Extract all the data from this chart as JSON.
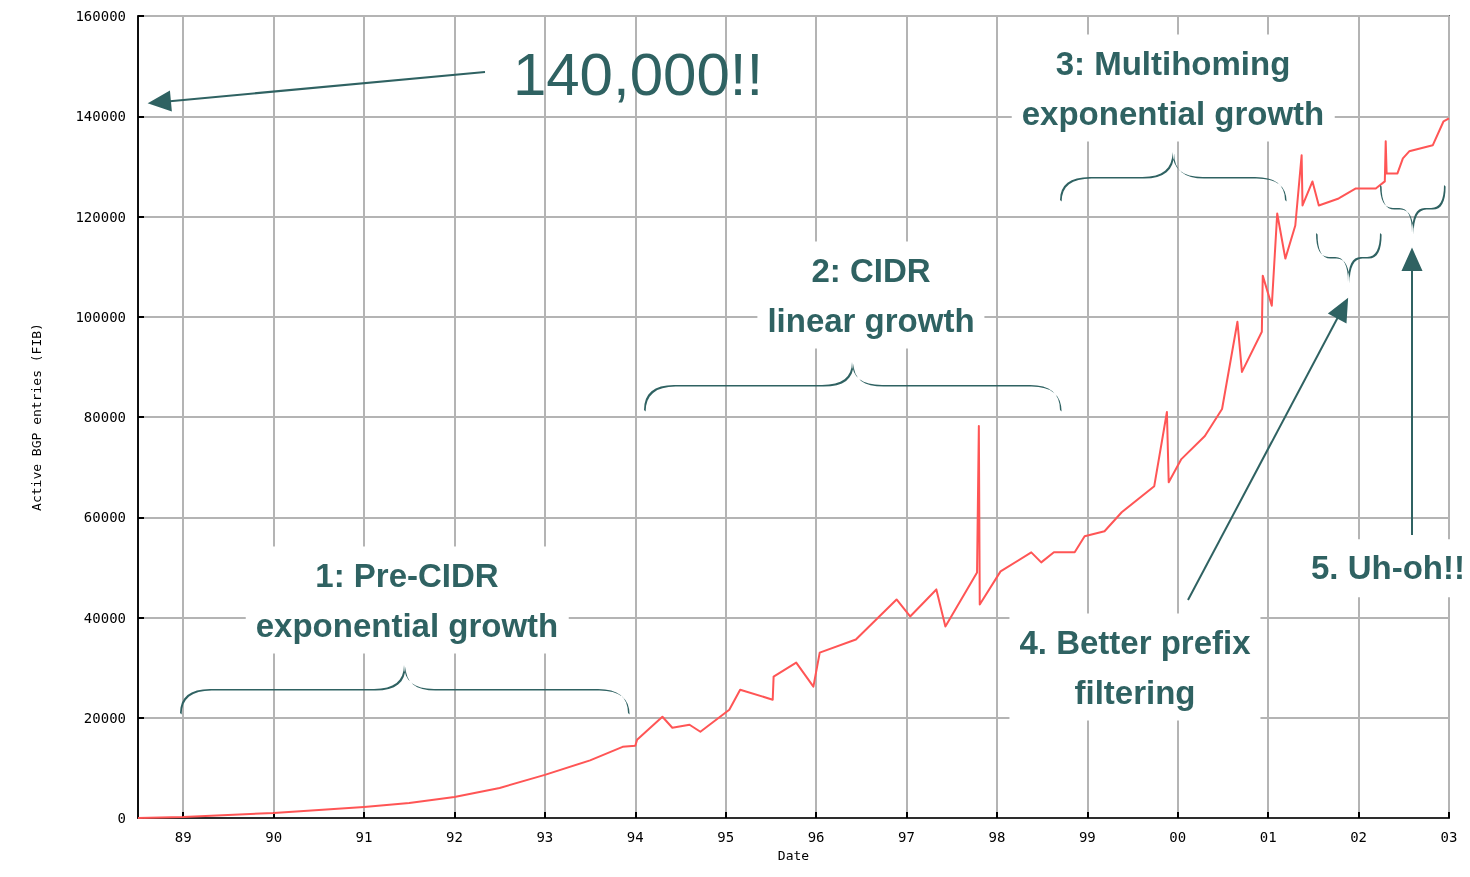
{
  "chart_data": {
    "type": "line",
    "xlabel": "Date",
    "ylabel": "Active BGP entries (FIB)",
    "xlim": [
      1988.5,
      2003
    ],
    "ylim": [
      0,
      160000
    ],
    "xticks": [
      {
        "value": 1989,
        "label": "89"
      },
      {
        "value": 1990,
        "label": "90"
      },
      {
        "value": 1991,
        "label": "91"
      },
      {
        "value": 1992,
        "label": "92"
      },
      {
        "value": 1993,
        "label": "93"
      },
      {
        "value": 1994,
        "label": "94"
      },
      {
        "value": 1995,
        "label": "95"
      },
      {
        "value": 1996,
        "label": "96"
      },
      {
        "value": 1997,
        "label": "97"
      },
      {
        "value": 1998,
        "label": "98"
      },
      {
        "value": 1999,
        "label": "99"
      },
      {
        "value": 2000,
        "label": "00"
      },
      {
        "value": 2001,
        "label": "01"
      },
      {
        "value": 2002,
        "label": "02"
      },
      {
        "value": 2003,
        "label": "03"
      }
    ],
    "yticks": [
      0,
      20000,
      40000,
      60000,
      80000,
      100000,
      120000,
      140000,
      160000
    ],
    "grid": true,
    "marker": "none",
    "line_style": "solid",
    "series": [
      {
        "color": "#ff5555",
        "x": [
          1988.5,
          1989,
          1990,
          1991,
          1991.5,
          1992,
          1992.5,
          1993,
          1993.5,
          1993.86,
          1994,
          1994.02,
          1994.3,
          1994.41,
          1994.6,
          1994.72,
          1995.04,
          1995.16,
          1995.52,
          1995.53,
          1995.78,
          1995.97,
          1996.04,
          1996.44,
          1996.89,
          1997.04,
          1997.33,
          1997.43,
          1997.78,
          1997.8,
          1997.81,
          1998.04,
          1998.38,
          1998.49,
          1998.63,
          1998.86,
          1998.97,
          1999.19,
          1999.38,
          1999.74,
          1999.88,
          1999.9,
          2000.04,
          2000.3,
          2000.49,
          2000.66,
          2000.71,
          2000.93,
          2000.94,
          2001.04,
          2001.1,
          2001.19,
          2001.3,
          2001.37,
          2001.38,
          2001.49,
          2001.56,
          2001.78,
          2001.97,
          2002.19,
          2002.29,
          2002.3,
          2002.31,
          2002.43,
          2002.49,
          2002.56,
          2002.82,
          2002.94,
          2003
        ],
        "values": [
          0,
          200,
          1000,
          2200,
          3000,
          4200,
          6000,
          8600,
          11500,
          14200,
          14400,
          15600,
          20200,
          18000,
          18600,
          17200,
          21600,
          25600,
          23600,
          28200,
          31000,
          26200,
          33000,
          35600,
          43600,
          40200,
          45600,
          38200,
          49000,
          78200,
          42600,
          49200,
          53000,
          51000,
          53000,
          53000,
          56200,
          57200,
          61000,
          66200,
          81000,
          67000,
          71600,
          76200,
          81600,
          99000,
          89000,
          97000,
          108200,
          102200,
          120600,
          111600,
          118200,
          132200,
          122200,
          127000,
          122200,
          123600,
          125600,
          125600,
          127000,
          135000,
          128600,
          128600,
          131600,
          133000,
          134200,
          139000,
          139600
        ]
      }
    ],
    "annotations": [
      "140,000!!",
      "1: Pre-CIDR\nexponential growth",
      "2: CIDR\nlinear growth",
      "3: Multihoming\nexponential growth",
      "4. Better prefix\nfiltering",
      "5. Uh-oh!!"
    ]
  }
}
